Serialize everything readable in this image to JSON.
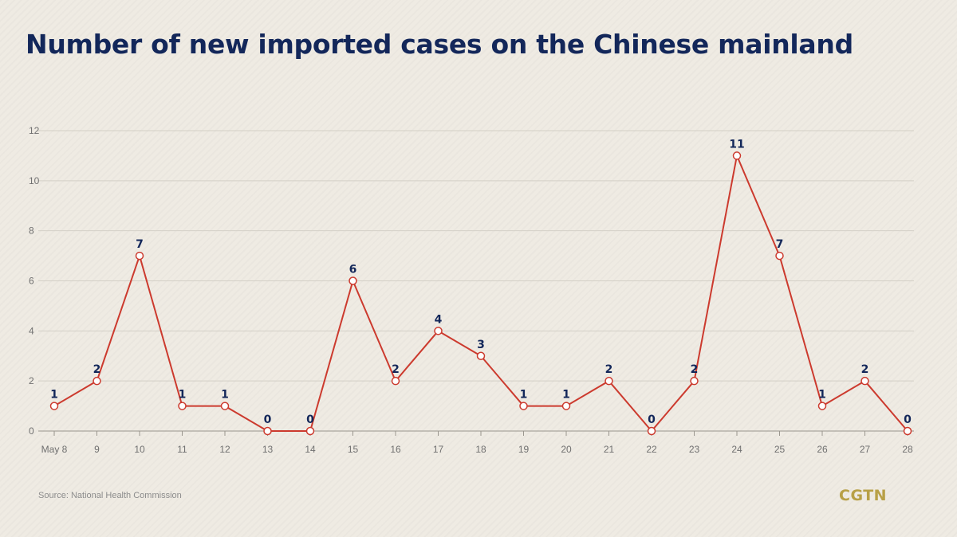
{
  "chart_data": {
    "type": "line",
    "title": "Number of new imported cases on the Chinese mainland",
    "xlabel": "",
    "ylabel": "",
    "categories": [
      "May 8",
      "9",
      "10",
      "11",
      "12",
      "13",
      "14",
      "15",
      "16",
      "17",
      "18",
      "19",
      "20",
      "21",
      "22",
      "23",
      "24",
      "25",
      "26",
      "27",
      "28"
    ],
    "series": [
      {
        "values": [
          1,
          2,
          7,
          1,
          1,
          0,
          0,
          6,
          2,
          4,
          3,
          1,
          1,
          2,
          0,
          2,
          11,
          7,
          1,
          2,
          0
        ],
        "color": "#cc3a2e"
      }
    ],
    "ylim": [
      0,
      12
    ],
    "yticks": [
      0,
      2,
      4,
      6,
      8,
      10,
      12
    ],
    "grid": true,
    "legend": "none"
  },
  "source": "Source: National Health Commission",
  "brand": "CGTN",
  "colors": {
    "title": "#13275a",
    "line": "#cc3a2e",
    "grid": "#d3cfc6",
    "brand": "#b8a046"
  }
}
